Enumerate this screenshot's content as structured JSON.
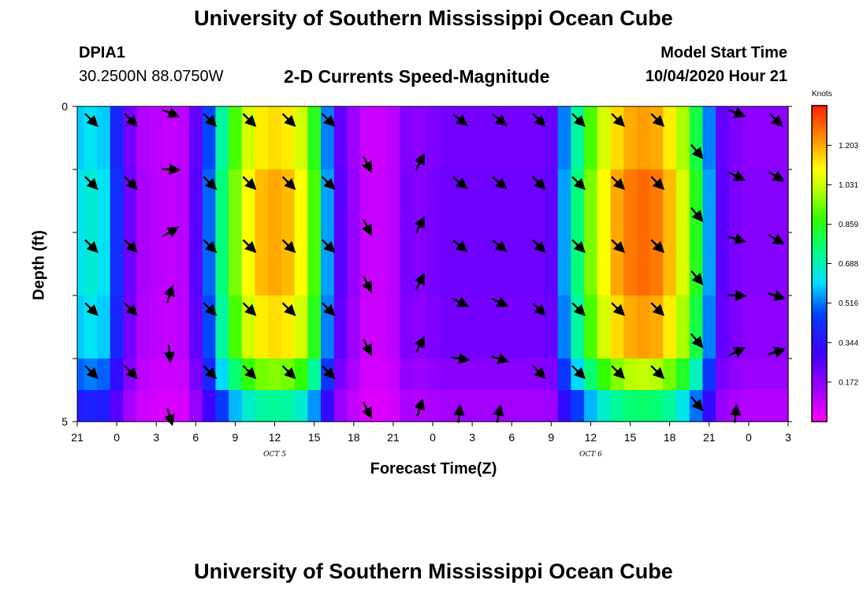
{
  "page": {
    "top_title": "University of Southern Mississippi Ocean Cube",
    "bottom_title": "University of Southern Mississippi Ocean Cube",
    "station": "DPIA1",
    "coords": "30.2500N 88.0750W",
    "plot_title": "2-D Currents Speed-Magnitude",
    "model_label": "Model Start Time",
    "model_time": "10/04/2020 Hour 21"
  },
  "chart_data": {
    "type": "heatmap",
    "title": "2-D Currents Speed-Magnitude",
    "xlabel": "Forecast Time(Z)",
    "ylabel": "Depth (ft)",
    "x_ticks": [
      "21",
      "0",
      "3",
      "6",
      "9",
      "12",
      "15",
      "18",
      "21",
      "0",
      "3",
      "6",
      "9",
      "12",
      "15",
      "18",
      "21",
      "0",
      "3"
    ],
    "date_labels": [
      {
        "text": "OCT 5",
        "tick_index": 5
      },
      {
        "text": "OCT 6",
        "tick_index": 13
      }
    ],
    "y_ticks": [
      "0",
      "5"
    ],
    "ylim": [
      0,
      5
    ],
    "x_hours": [
      21,
      22,
      23,
      24,
      25,
      26,
      27,
      28,
      29,
      30,
      31,
      32,
      33,
      34,
      35,
      36,
      37,
      38,
      39,
      40,
      41,
      42,
      43,
      44,
      45,
      46,
      47,
      48,
      49,
      50,
      51,
      52,
      53,
      54,
      55,
      56,
      57,
      58,
      59,
      60,
      61,
      62,
      63,
      64,
      65,
      66,
      67,
      68,
      69,
      70,
      71,
      72,
      73,
      74,
      75
    ],
    "depth_rows": [
      0,
      1,
      2,
      3,
      4,
      4.5
    ],
    "profile_multipliers": [
      0.95,
      1.0,
      1.0,
      0.95,
      0.8,
      0.6
    ],
    "surface_speed_knots": [
      0.62,
      0.65,
      0.62,
      0.42,
      0.22,
      0.12,
      0.1,
      0.09,
      0.1,
      0.25,
      0.5,
      0.75,
      0.95,
      1.1,
      1.18,
      1.2,
      1.18,
      1.1,
      0.9,
      0.55,
      0.25,
      0.15,
      0.08,
      0.08,
      0.1,
      0.2,
      0.18,
      0.2,
      0.22,
      0.22,
      0.22,
      0.22,
      0.22,
      0.22,
      0.22,
      0.22,
      0.24,
      0.55,
      0.75,
      0.95,
      1.1,
      1.2,
      1.26,
      1.28,
      1.26,
      1.18,
      1.05,
      0.85,
      0.55,
      0.25,
      0.2,
      0.18,
      0.18,
      0.18,
      0.18
    ],
    "colorbar": {
      "unit": "Knots",
      "ticks": [
        "1.203",
        "1.031",
        "0.859",
        "0.688",
        "0.516",
        "0.344",
        "0.172"
      ],
      "min": 0.0,
      "max": 1.376
    },
    "vectors": [
      {
        "hour": 22,
        "depth": 0.2,
        "dx": 1,
        "dy": 1
      },
      {
        "hour": 22,
        "depth": 1.2,
        "dx": 1,
        "dy": 1
      },
      {
        "hour": 22,
        "depth": 2.2,
        "dx": 1,
        "dy": 1
      },
      {
        "hour": 22,
        "depth": 3.2,
        "dx": 1,
        "dy": 1
      },
      {
        "hour": 22,
        "depth": 4.2,
        "dx": 1,
        "dy": 1
      },
      {
        "hour": 25,
        "depth": 0.2,
        "dx": 1,
        "dy": 1
      },
      {
        "hour": 25,
        "depth": 1.2,
        "dx": 1,
        "dy": 1
      },
      {
        "hour": 25,
        "depth": 2.2,
        "dx": 1,
        "dy": 1
      },
      {
        "hour": 25,
        "depth": 3.2,
        "dx": 1,
        "dy": 1
      },
      {
        "hour": 25,
        "depth": 4.2,
        "dx": 1,
        "dy": 1
      },
      {
        "hour": 28,
        "depth": 0.1,
        "dx": 1,
        "dy": 0.4
      },
      {
        "hour": 28,
        "depth": 1.0,
        "dx": 1,
        "dy": 0.05
      },
      {
        "hour": 28,
        "depth": 2.0,
        "dx": 1,
        "dy": -0.6
      },
      {
        "hour": 28,
        "depth": 3.0,
        "dx": 0.3,
        "dy": -1
      },
      {
        "hour": 28,
        "depth": 3.9,
        "dx": 0.1,
        "dy": 1
      },
      {
        "hour": 28,
        "depth": 4.9,
        "dx": 0.3,
        "dy": 1
      },
      {
        "hour": 31,
        "depth": 0.2,
        "dx": 1,
        "dy": 1
      },
      {
        "hour": 31,
        "depth": 1.2,
        "dx": 1,
        "dy": 1
      },
      {
        "hour": 31,
        "depth": 2.2,
        "dx": 1,
        "dy": 1
      },
      {
        "hour": 31,
        "depth": 3.2,
        "dx": 1,
        "dy": 1
      },
      {
        "hour": 31,
        "depth": 4.2,
        "dx": 1,
        "dy": 1
      },
      {
        "hour": 34,
        "depth": 0.2,
        "dx": 1,
        "dy": 1
      },
      {
        "hour": 34,
        "depth": 1.2,
        "dx": 1,
        "dy": 1
      },
      {
        "hour": 34,
        "depth": 2.2,
        "dx": 1,
        "dy": 1
      },
      {
        "hour": 34,
        "depth": 3.2,
        "dx": 1,
        "dy": 1
      },
      {
        "hour": 34,
        "depth": 4.2,
        "dx": 1,
        "dy": 1
      },
      {
        "hour": 37,
        "depth": 0.2,
        "dx": 1,
        "dy": 1
      },
      {
        "hour": 37,
        "depth": 1.2,
        "dx": 1,
        "dy": 1
      },
      {
        "hour": 37,
        "depth": 2.2,
        "dx": 1,
        "dy": 1
      },
      {
        "hour": 37,
        "depth": 3.2,
        "dx": 1,
        "dy": 1
      },
      {
        "hour": 37,
        "depth": 4.2,
        "dx": 1,
        "dy": 1
      },
      {
        "hour": 40,
        "depth": 0.2,
        "dx": 1,
        "dy": 1
      },
      {
        "hour": 40,
        "depth": 1.2,
        "dx": 1,
        "dy": 1
      },
      {
        "hour": 40,
        "depth": 2.2,
        "dx": 1,
        "dy": 1
      },
      {
        "hour": 40,
        "depth": 3.2,
        "dx": 1,
        "dy": 1
      },
      {
        "hour": 40,
        "depth": 4.2,
        "dx": 1,
        "dy": 1
      },
      {
        "hour": 43,
        "depth": 0.9,
        "dx": 0.5,
        "dy": 1
      },
      {
        "hour": 43,
        "depth": 1.9,
        "dx": 0.5,
        "dy": 1
      },
      {
        "hour": 43,
        "depth": 2.8,
        "dx": 0.5,
        "dy": 1
      },
      {
        "hour": 43,
        "depth": 3.8,
        "dx": 0.5,
        "dy": 1
      },
      {
        "hour": 43,
        "depth": 4.8,
        "dx": 0.5,
        "dy": 1
      },
      {
        "hour": 47,
        "depth": 0.9,
        "dx": 0.5,
        "dy": -1
      },
      {
        "hour": 47,
        "depth": 1.9,
        "dx": 0.5,
        "dy": -1
      },
      {
        "hour": 47,
        "depth": 2.8,
        "dx": 0.5,
        "dy": -1
      },
      {
        "hour": 47,
        "depth": 3.8,
        "dx": 0.5,
        "dy": -1
      },
      {
        "hour": 47,
        "depth": 4.8,
        "dx": 0.3,
        "dy": -1
      },
      {
        "hour": 50,
        "depth": 0.2,
        "dx": 1,
        "dy": 0.8
      },
      {
        "hour": 50,
        "depth": 1.2,
        "dx": 1,
        "dy": 0.8
      },
      {
        "hour": 50,
        "depth": 2.2,
        "dx": 1,
        "dy": 0.8
      },
      {
        "hour": 50,
        "depth": 3.1,
        "dx": 1,
        "dy": 0.5
      },
      {
        "hour": 50,
        "depth": 4.0,
        "dx": 1,
        "dy": 0.15
      },
      {
        "hour": 50,
        "depth": 4.9,
        "dx": 0.1,
        "dy": -1
      },
      {
        "hour": 53,
        "depth": 0.2,
        "dx": 1,
        "dy": 0.8
      },
      {
        "hour": 53,
        "depth": 1.2,
        "dx": 1,
        "dy": 0.8
      },
      {
        "hour": 53,
        "depth": 2.2,
        "dx": 1,
        "dy": 0.8
      },
      {
        "hour": 53,
        "depth": 3.1,
        "dx": 1,
        "dy": 0.5
      },
      {
        "hour": 53,
        "depth": 4.0,
        "dx": 1,
        "dy": 0.3
      },
      {
        "hour": 53,
        "depth": 4.9,
        "dx": 0.2,
        "dy": -1
      },
      {
        "hour": 56,
        "depth": 0.2,
        "dx": 1,
        "dy": 1
      },
      {
        "hour": 56,
        "depth": 1.2,
        "dx": 1,
        "dy": 1
      },
      {
        "hour": 56,
        "depth": 2.2,
        "dx": 1,
        "dy": 1
      },
      {
        "hour": 56,
        "depth": 3.2,
        "dx": 1,
        "dy": 1
      },
      {
        "hour": 56,
        "depth": 4.2,
        "dx": 1,
        "dy": 1
      },
      {
        "hour": 59,
        "depth": 0.2,
        "dx": 1,
        "dy": 1
      },
      {
        "hour": 59,
        "depth": 1.2,
        "dx": 1,
        "dy": 1
      },
      {
        "hour": 59,
        "depth": 2.2,
        "dx": 1,
        "dy": 1
      },
      {
        "hour": 59,
        "depth": 3.2,
        "dx": 1,
        "dy": 1
      },
      {
        "hour": 59,
        "depth": 4.2,
        "dx": 1,
        "dy": 1
      },
      {
        "hour": 62,
        "depth": 0.2,
        "dx": 1,
        "dy": 1
      },
      {
        "hour": 62,
        "depth": 1.2,
        "dx": 1,
        "dy": 1
      },
      {
        "hour": 62,
        "depth": 2.2,
        "dx": 1,
        "dy": 1
      },
      {
        "hour": 62,
        "depth": 3.2,
        "dx": 1,
        "dy": 1
      },
      {
        "hour": 62,
        "depth": 4.2,
        "dx": 1,
        "dy": 1
      },
      {
        "hour": 65,
        "depth": 0.2,
        "dx": 1,
        "dy": 1
      },
      {
        "hour": 65,
        "depth": 1.2,
        "dx": 1,
        "dy": 1
      },
      {
        "hour": 65,
        "depth": 2.2,
        "dx": 1,
        "dy": 1
      },
      {
        "hour": 65,
        "depth": 3.2,
        "dx": 1,
        "dy": 1
      },
      {
        "hour": 65,
        "depth": 4.2,
        "dx": 1,
        "dy": 1
      },
      {
        "hour": 68,
        "depth": 0.7,
        "dx": 1,
        "dy": 1.2
      },
      {
        "hour": 68,
        "depth": 1.7,
        "dx": 1,
        "dy": 1.2
      },
      {
        "hour": 68,
        "depth": 2.7,
        "dx": 1,
        "dy": 1.2
      },
      {
        "hour": 68,
        "depth": 3.7,
        "dx": 1,
        "dy": 1.2
      },
      {
        "hour": 68,
        "depth": 4.7,
        "dx": 1,
        "dy": 1.2
      },
      {
        "hour": 71,
        "depth": 0.1,
        "dx": 1,
        "dy": 0.4
      },
      {
        "hour": 71,
        "depth": 1.1,
        "dx": 1,
        "dy": 0.5
      },
      {
        "hour": 71,
        "depth": 2.1,
        "dx": 1,
        "dy": 0.3
      },
      {
        "hour": 71,
        "depth": 3.0,
        "dx": 1,
        "dy": 0.05
      },
      {
        "hour": 71,
        "depth": 3.9,
        "dx": 1,
        "dy": -0.5
      },
      {
        "hour": 71,
        "depth": 4.9,
        "dx": 0.1,
        "dy": -1
      },
      {
        "hour": 74,
        "depth": 0.2,
        "dx": 1,
        "dy": 1
      },
      {
        "hour": 74,
        "depth": 1.1,
        "dx": 1,
        "dy": 0.6
      },
      {
        "hour": 74,
        "depth": 2.1,
        "dx": 1,
        "dy": 0.6
      },
      {
        "hour": 74,
        "depth": 3.0,
        "dx": 1,
        "dy": 0.3
      },
      {
        "hour": 74,
        "depth": 3.9,
        "dx": 1,
        "dy": -0.3
      }
    ]
  }
}
